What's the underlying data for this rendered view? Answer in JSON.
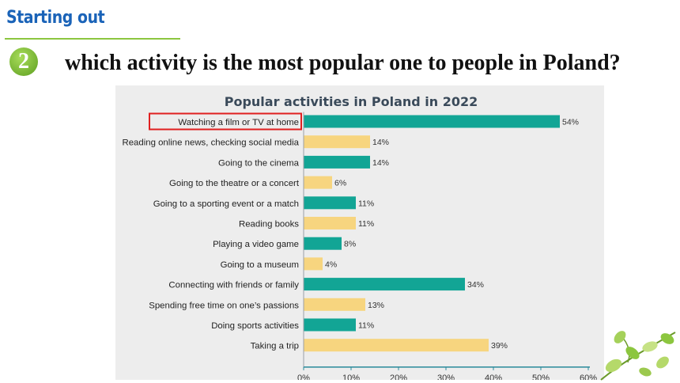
{
  "header": {
    "section_title": "Starting out",
    "question_number": "2",
    "question_text": "which activity is the most popular one to people in Poland?"
  },
  "colors": {
    "teal": "#12a595",
    "yellow": "#f7d57f",
    "highlight": "#e02020",
    "title_text": "#3a4a5a"
  },
  "chart_data": {
    "type": "bar",
    "orientation": "horizontal",
    "title": "Popular activities in Poland in 2022",
    "categories": [
      "Watching a film or TV at home",
      "Reading online news, checking social media",
      "Going to the cinema",
      "Going to the theatre or a concert",
      "Going to a sporting event or a match",
      "Reading books",
      "Playing a video game",
      "Going to a museum",
      "Connecting with friends or family",
      "Spending free time on one’s passions",
      "Doing sports activities",
      "Taking a trip"
    ],
    "values": [
      54,
      14,
      14,
      6,
      11,
      11,
      8,
      4,
      34,
      13,
      11,
      39
    ],
    "value_labels": [
      "54%",
      "14%",
      "14%",
      "6%",
      "11%",
      "11%",
      "8%",
      "4%",
      "34%",
      "13%",
      "11%",
      "39%"
    ],
    "bar_colors": [
      "teal",
      "yellow",
      "teal",
      "yellow",
      "teal",
      "yellow",
      "teal",
      "yellow",
      "teal",
      "yellow",
      "teal",
      "yellow"
    ],
    "x_ticks": [
      0,
      10,
      20,
      30,
      40,
      50,
      60
    ],
    "x_tick_labels": [
      "0%",
      "10%",
      "20%",
      "30%",
      "40%",
      "50%",
      "60%"
    ],
    "xlim": [
      0,
      60
    ],
    "highlighted_category": "Watching a film or TV at home"
  }
}
